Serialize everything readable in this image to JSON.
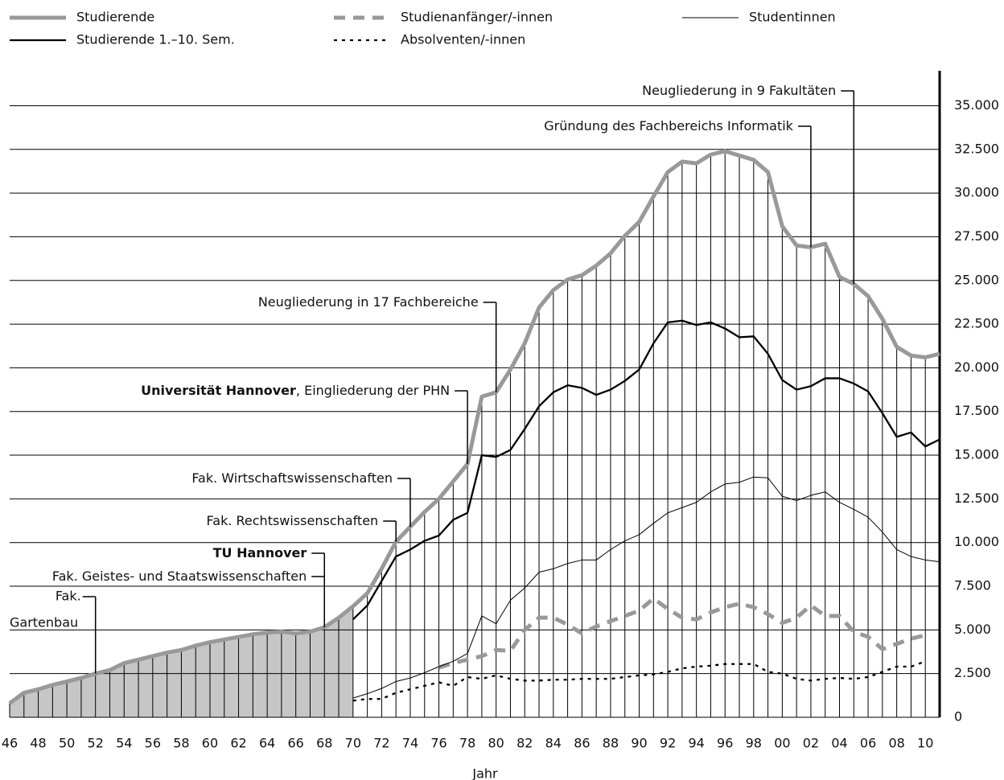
{
  "chart_data": {
    "type": "line",
    "x_label": "Jahr",
    "xlim": [
      1946,
      2011
    ],
    "ylim": [
      0,
      37000
    ],
    "xticks": [
      {
        "value": 1946,
        "label": "46"
      },
      {
        "value": 1948,
        "label": "48"
      },
      {
        "value": 1950,
        "label": "50"
      },
      {
        "value": 1952,
        "label": "52"
      },
      {
        "value": 1954,
        "label": "54"
      },
      {
        "value": 1956,
        "label": "56"
      },
      {
        "value": 1958,
        "label": "58"
      },
      {
        "value": 1960,
        "label": "60"
      },
      {
        "value": 1962,
        "label": "62"
      },
      {
        "value": 1964,
        "label": "64"
      },
      {
        "value": 1966,
        "label": "66"
      },
      {
        "value": 1968,
        "label": "68"
      },
      {
        "value": 1970,
        "label": "70"
      },
      {
        "value": 1972,
        "label": "72"
      },
      {
        "value": 1974,
        "label": "74"
      },
      {
        "value": 1976,
        "label": "76"
      },
      {
        "value": 1978,
        "label": "78"
      },
      {
        "value": 1980,
        "label": "80"
      },
      {
        "value": 1982,
        "label": "82"
      },
      {
        "value": 1984,
        "label": "84"
      },
      {
        "value": 1986,
        "label": "86"
      },
      {
        "value": 1988,
        "label": "88"
      },
      {
        "value": 1990,
        "label": "90"
      },
      {
        "value": 1992,
        "label": "92"
      },
      {
        "value": 1994,
        "label": "94"
      },
      {
        "value": 1996,
        "label": "96"
      },
      {
        "value": 1998,
        "label": "98"
      },
      {
        "value": 2000,
        "label": "00"
      },
      {
        "value": 2002,
        "label": "02"
      },
      {
        "value": 2004,
        "label": "04"
      },
      {
        "value": 2006,
        "label": "06"
      },
      {
        "value": 2008,
        "label": "08"
      },
      {
        "value": 2010,
        "label": "10"
      }
    ],
    "yticks": [
      0,
      {
        "value": 2500,
        "label": "2.500"
      },
      {
        "value": 5000,
        "label": "5.000"
      },
      {
        "value": 7500,
        "label": "7.500"
      },
      {
        "value": 10000,
        "label": "10.000"
      },
      {
        "value": 12500,
        "label": "12.500"
      },
      {
        "value": 15000,
        "label": "15.000"
      },
      {
        "value": 17500,
        "label": "17.500"
      },
      {
        "value": 20000,
        "label": "20.000"
      },
      {
        "value": 22500,
        "label": "22.500"
      },
      {
        "value": 25000,
        "label": "25.000"
      },
      {
        "value": 27500,
        "label": "27.500"
      },
      {
        "value": 30000,
        "label": "30.000"
      },
      {
        "value": 32500,
        "label": "32.500"
      },
      {
        "value": 35000,
        "label": "35.000"
      }
    ],
    "grid": true,
    "fill_until": 1970,
    "fill_color": "#c6c6c6",
    "x": [
      1946,
      1947,
      1948,
      1949,
      1950,
      1951,
      1952,
      1953,
      1954,
      1955,
      1956,
      1957,
      1958,
      1959,
      1960,
      1961,
      1962,
      1963,
      1964,
      1965,
      1966,
      1967,
      1968,
      1969,
      1970,
      1971,
      1972,
      1973,
      1974,
      1975,
      1976,
      1977,
      1978,
      1979,
      1980,
      1981,
      1982,
      1983,
      1984,
      1985,
      1986,
      1987,
      1988,
      1989,
      1990,
      1991,
      1992,
      1993,
      1994,
      1995,
      1996,
      1997,
      1998,
      1999,
      2000,
      2001,
      2002,
      2003,
      2004,
      2005,
      2006,
      2007,
      2008,
      2009,
      2010,
      2011
    ],
    "series": [
      {
        "name": "Studierende",
        "color": "#999999",
        "line_style": "solid",
        "weight": "thick",
        "values": [
          800,
          1400,
          1600,
          1850,
          2050,
          2250,
          2500,
          2700,
          3100,
          3300,
          3500,
          3700,
          3850,
          4100,
          4300,
          4450,
          4600,
          4750,
          4850,
          4900,
          4800,
          4900,
          5150,
          5700,
          6350,
          7100,
          8500,
          10050,
          10900,
          11750,
          12500,
          13500,
          14500,
          18350,
          18600,
          19900,
          21400,
          23450,
          24450,
          25050,
          25300,
          25850,
          26550,
          27550,
          28350,
          29800,
          31200,
          31800,
          31700,
          32200,
          32400,
          32150,
          31900,
          31200,
          28100,
          27000,
          26900,
          27100,
          25200,
          24800,
          24100,
          22800,
          21200,
          20700,
          20600,
          20800
        ]
      },
      {
        "name": "Studierende 1.–10. Sem.",
        "color": "#000000",
        "line_style": "solid",
        "weight": "medium",
        "values": [
          null,
          null,
          null,
          null,
          null,
          null,
          null,
          null,
          null,
          null,
          null,
          null,
          null,
          null,
          null,
          null,
          null,
          null,
          null,
          null,
          null,
          null,
          null,
          null,
          5600,
          6400,
          7800,
          9200,
          9600,
          10100,
          10400,
          11300,
          11700,
          15000,
          14900,
          15300,
          16500,
          17800,
          18600,
          19000,
          18850,
          18450,
          18750,
          19250,
          19900,
          21400,
          22600,
          22700,
          22450,
          22600,
          22250,
          21750,
          21800,
          20800,
          19300,
          18750,
          18950,
          19400,
          19400,
          19100,
          18650,
          17400,
          16050,
          16300,
          15500,
          15900
        ]
      },
      {
        "name": "Studienanfänger/-innen",
        "color": "#999999",
        "line_style": "dashed",
        "weight": "thick",
        "values": [
          null,
          null,
          null,
          null,
          null,
          null,
          null,
          null,
          null,
          null,
          null,
          null,
          null,
          null,
          null,
          null,
          null,
          null,
          null,
          null,
          null,
          null,
          null,
          null,
          null,
          null,
          null,
          null,
          null,
          null,
          2850,
          3100,
          3300,
          3500,
          3850,
          3800,
          5000,
          5700,
          5700,
          5300,
          4800,
          5200,
          5500,
          5800,
          6100,
          6800,
          6200,
          5700,
          5600,
          6000,
          6300,
          6500,
          6300,
          5900,
          5400,
          5700,
          6400,
          5800,
          5800,
          4900,
          4600,
          3900,
          4200,
          4500,
          4700,
          null
        ]
      },
      {
        "name": "Absolventen/-innen",
        "color": "#000000",
        "line_style": "dotted",
        "weight": "medium",
        "values": [
          null,
          null,
          null,
          null,
          null,
          null,
          null,
          null,
          null,
          null,
          null,
          null,
          null,
          null,
          null,
          null,
          null,
          null,
          null,
          null,
          null,
          null,
          null,
          null,
          950,
          1050,
          1050,
          1400,
          1600,
          1800,
          2000,
          1800,
          2300,
          2200,
          2400,
          2200,
          2100,
          2100,
          2150,
          2150,
          2200,
          2200,
          2200,
          2300,
          2400,
          2450,
          2600,
          2800,
          2900,
          2950,
          3050,
          3050,
          3050,
          2600,
          2500,
          2200,
          2100,
          2200,
          2250,
          2200,
          2300,
          2600,
          2900,
          2900,
          3200,
          null
        ]
      },
      {
        "name": "Studentinnen",
        "color": "#000000",
        "line_style": "solid",
        "weight": "thin",
        "values": [
          null,
          null,
          null,
          null,
          null,
          null,
          null,
          null,
          null,
          null,
          null,
          null,
          null,
          null,
          null,
          null,
          null,
          null,
          null,
          null,
          null,
          null,
          null,
          null,
          1100,
          1350,
          1650,
          2050,
          2250,
          2550,
          2900,
          3200,
          3650,
          5800,
          5350,
          6700,
          7400,
          8300,
          8500,
          8800,
          9000,
          9000,
          9600,
          10100,
          10450,
          11100,
          11700,
          12000,
          12300,
          12900,
          13350,
          13450,
          13750,
          13700,
          12650,
          12400,
          12700,
          12900,
          12300,
          11900,
          11450,
          10600,
          9600,
          9200,
          9000,
          8900
        ]
      }
    ],
    "annotations": [
      {
        "x": 2005,
        "parts": [
          {
            "text": "Neugliederung in 9 Fakultäten"
          }
        ]
      },
      {
        "x": 2002,
        "parts": [
          {
            "text": "Gründung des Fachbereichs Informatik"
          }
        ]
      },
      {
        "x": 1980,
        "parts": [
          {
            "text": "Neugliederung in 17 Fachbereiche"
          }
        ]
      },
      {
        "x": 1978,
        "parts": [
          {
            "text": "Universität Hannover",
            "bold": true
          },
          {
            "text": ", Eingliederung der PHN"
          }
        ]
      },
      {
        "x": 1974,
        "parts": [
          {
            "text": "Fak. Wirtschaftswissenschaften"
          }
        ]
      },
      {
        "x": 1973,
        "parts": [
          {
            "text": "Fak. Rechtswissenschaften"
          }
        ]
      },
      {
        "x": 1968,
        "parts": [
          {
            "text": "TU Hannover",
            "bold": true
          }
        ]
      },
      {
        "x": 1968,
        "parts": [
          {
            "text": "Fak. Geistes- und Staatswissenschaften"
          }
        ]
      },
      {
        "x": 1952,
        "lines": [
          "Fak.",
          "Gartenbau"
        ]
      }
    ]
  }
}
